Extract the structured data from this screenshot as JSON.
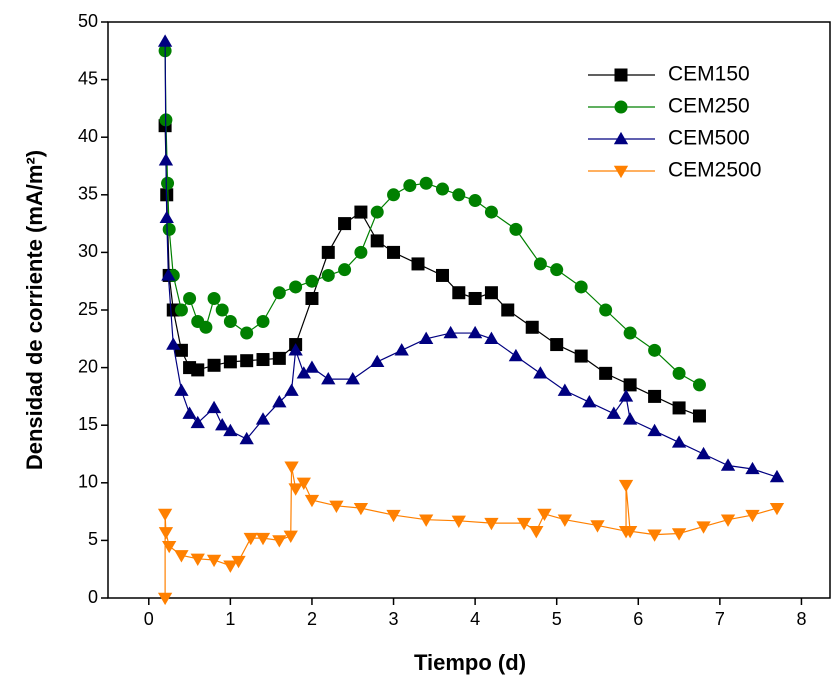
{
  "chart_data": {
    "type": "line",
    "x_label": "Tiempo (d)",
    "y_label": "Densidad de corriente (mA/m²)",
    "xlim": [
      -0.5,
      8.35
    ],
    "xticks": [
      0,
      1,
      2,
      3,
      4,
      5,
      6,
      7,
      8
    ],
    "ylim": [
      0,
      50
    ],
    "yticks": [
      0,
      5,
      10,
      15,
      20,
      25,
      30,
      35,
      40,
      45,
      50
    ],
    "legend": "upper right",
    "series": [
      {
        "name": "CEM150",
        "color": "#000000",
        "marker": "square",
        "x": [
          0.2,
          0.22,
          0.25,
          0.3,
          0.4,
          0.5,
          0.6,
          0.8,
          1.0,
          1.2,
          1.4,
          1.6,
          1.8,
          2.0,
          2.2,
          2.4,
          2.6,
          2.8,
          3.0,
          3.3,
          3.6,
          3.8,
          4.0,
          4.2,
          4.4,
          4.7,
          5.0,
          5.3,
          5.6,
          5.9,
          6.2,
          6.5,
          6.75
        ],
        "values": [
          41,
          35,
          28,
          25,
          21.5,
          20,
          19.8,
          20.2,
          20.5,
          20.6,
          20.7,
          20.8,
          22,
          26,
          30,
          32.5,
          33.5,
          31,
          30,
          29,
          28,
          26.5,
          26,
          26.5,
          25,
          23.5,
          22,
          21,
          19.5,
          18.5,
          17.5,
          16.5,
          15.8
        ]
      },
      {
        "name": "CEM250",
        "color": "#008000",
        "marker": "circle",
        "x": [
          0.2,
          0.21,
          0.23,
          0.25,
          0.3,
          0.4,
          0.5,
          0.6,
          0.7,
          0.8,
          0.9,
          1.0,
          1.2,
          1.4,
          1.6,
          1.8,
          2.0,
          2.2,
          2.4,
          2.6,
          2.8,
          3.0,
          3.2,
          3.4,
          3.6,
          3.8,
          4.0,
          4.2,
          4.5,
          4.8,
          5.0,
          5.3,
          5.6,
          5.9,
          6.2,
          6.5,
          6.75
        ],
        "values": [
          47.5,
          41.5,
          36,
          32,
          28,
          25,
          26,
          24,
          23.5,
          26,
          25,
          24,
          23,
          24,
          26.5,
          27,
          27.5,
          28,
          28.5,
          30,
          33.5,
          35,
          35.8,
          36,
          35.5,
          35,
          34.5,
          33.5,
          32,
          29,
          28.5,
          27,
          25,
          23,
          21.5,
          19.5,
          18.5
        ]
      },
      {
        "name": "CEM500",
        "color": "#000080",
        "marker": "triangle-up",
        "x": [
          0.2,
          0.21,
          0.22,
          0.24,
          0.3,
          0.4,
          0.5,
          0.6,
          0.8,
          0.9,
          1.0,
          1.2,
          1.4,
          1.6,
          1.75,
          1.8,
          1.9,
          2.0,
          2.2,
          2.5,
          2.8,
          3.1,
          3.4,
          3.7,
          4.0,
          4.2,
          4.5,
          4.8,
          5.1,
          5.4,
          5.7,
          5.85,
          5.9,
          6.2,
          6.5,
          6.8,
          7.1,
          7.4,
          7.7
        ],
        "values": [
          48.3,
          38,
          33,
          28,
          22,
          18,
          16,
          15.2,
          16.5,
          15,
          14.5,
          13.8,
          15.5,
          17,
          18,
          21.5,
          19.5,
          20,
          19,
          19,
          20.5,
          21.5,
          22.5,
          23,
          23,
          22.5,
          21,
          19.5,
          18,
          17,
          16,
          17.5,
          15.5,
          14.5,
          13.5,
          12.5,
          11.5,
          11.2,
          10.5
        ]
      },
      {
        "name": "CEM2500",
        "color": "#ff8000",
        "marker": "triangle-down",
        "x": [
          0.2,
          0.2,
          0.21,
          0.25,
          0.4,
          0.6,
          0.8,
          1.0,
          1.1,
          1.25,
          1.4,
          1.6,
          1.74,
          1.75,
          1.8,
          1.9,
          2.0,
          2.3,
          2.6,
          3.0,
          3.4,
          3.8,
          4.2,
          4.6,
          4.75,
          4.85,
          5.1,
          5.5,
          5.85,
          5.85,
          5.9,
          6.2,
          6.5,
          6.8,
          7.1,
          7.4,
          7.7
        ],
        "values": [
          0,
          7.3,
          5.7,
          4.5,
          3.7,
          3.4,
          3.3,
          2.8,
          3.2,
          5.2,
          5.2,
          5.0,
          5.4,
          11.4,
          9.5,
          10,
          8.5,
          8,
          7.8,
          7.2,
          6.8,
          6.7,
          6.5,
          6.5,
          5.8,
          7.3,
          6.8,
          6.3,
          5.8,
          9.8,
          5.8,
          5.5,
          5.6,
          6.2,
          6.8,
          7.2,
          7.8
        ]
      }
    ]
  }
}
